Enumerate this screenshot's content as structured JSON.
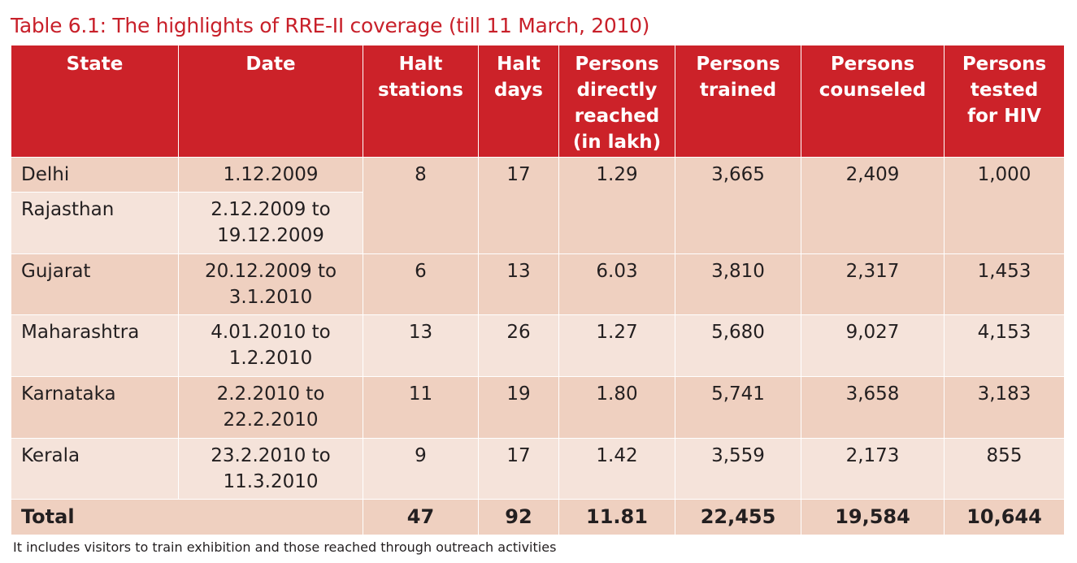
{
  "title": "Table 6.1: The highlights of RRE-II coverage (till 11 March, 2010)",
  "headers": [
    "State",
    "Date",
    "Halt stations",
    "Halt days",
    "Persons directly reached (in lakh)",
    "Persons trained",
    "Persons counseled",
    "Persons tested for HIV"
  ],
  "rows": [
    {
      "state": "Delhi",
      "date": "1.12.2009",
      "halt_stations": "8",
      "halt_days": "17",
      "reached": "1.29",
      "trained": "3,665",
      "counseled": "2,409",
      "tested": "1,000"
    },
    {
      "state": "Rajasthan",
      "date": "2.12.2009 to 19.12.2009"
    },
    {
      "state": "Gujarat",
      "date": "20.12.2009 to 3.1.2010",
      "halt_stations": "6",
      "halt_days": "13",
      "reached": "6.03",
      "trained": "3,810",
      "counseled": "2,317",
      "tested": "1,453"
    },
    {
      "state": "Maharashtra",
      "date": "4.01.2010 to 1.2.2010",
      "halt_stations": "13",
      "halt_days": "26",
      "reached": "1.27",
      "trained": "5,680",
      "counseled": "9,027",
      "tested": "4,153"
    },
    {
      "state": "Karnataka",
      "date": "2.2.2010 to 22.2.2010",
      "halt_stations": "11",
      "halt_days": "19",
      "reached": "1.80",
      "trained": "5,741",
      "counseled": "3,658",
      "tested": "3,183"
    },
    {
      "state": "Kerala",
      "date": "23.2.2010 to 11.3.2010",
      "halt_stations": "9",
      "halt_days": "17",
      "reached": "1.42",
      "trained": "3,559",
      "counseled": "2,173",
      "tested": "855"
    }
  ],
  "total": {
    "label": "Total",
    "halt_stations": "47",
    "halt_days": "92",
    "reached": "11.81",
    "trained": "22,455",
    "counseled": "19,584",
    "tested": "10,644"
  },
  "footnote": "It includes visitors to train exhibition and those reached through outreach activities",
  "colors": {
    "header": "#cc2229",
    "row_dark": "#efd0c0",
    "row_light": "#f5e3da",
    "title": "#c8202a"
  }
}
